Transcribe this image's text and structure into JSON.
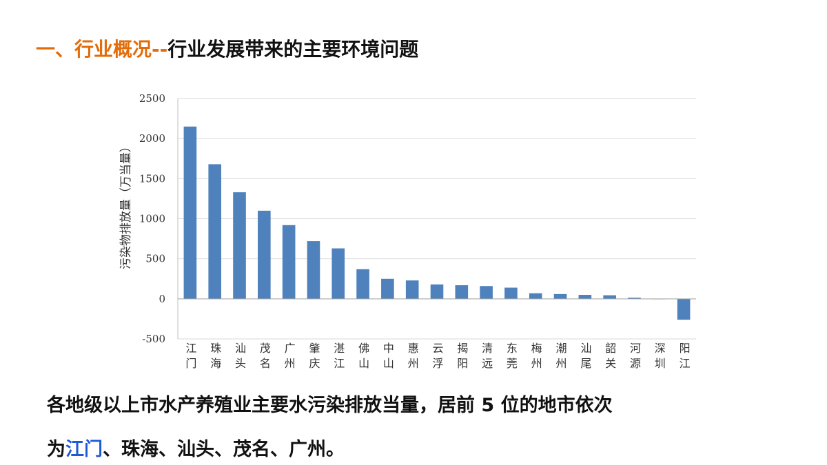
{
  "header": {
    "prefix": "一、行业概况--",
    "title": "行业发展带来的主要环境问题"
  },
  "chart_data": {
    "type": "bar",
    "y_label": "污染物排放量（万当量）",
    "categories": [
      "江门",
      "珠海",
      "汕头",
      "茂名",
      "广州",
      "肇庆",
      "湛江",
      "佛山",
      "中山",
      "惠州",
      "云浮",
      "揭阳",
      "清远",
      "东莞",
      "梅州",
      "潮州",
      "汕尾",
      "韶关",
      "河源",
      "深圳",
      "阳江"
    ],
    "values": [
      2150,
      1680,
      1330,
      1100,
      920,
      720,
      630,
      370,
      250,
      230,
      180,
      170,
      160,
      140,
      70,
      60,
      50,
      45,
      15,
      -5,
      -260
    ],
    "color": "#4f81bd",
    "ylim": [
      -500,
      2500
    ],
    "yticks": [
      -500,
      0,
      500,
      1000,
      1500,
      2000,
      2500
    ],
    "grid": true
  },
  "body": {
    "line1": "各地级以上市水产养殖业主要水污染排放当量，居前 5 位的地市依次",
    "prefix": "为",
    "highlight": "江门",
    "rest": "、珠海、汕头、茂名、广州。"
  }
}
